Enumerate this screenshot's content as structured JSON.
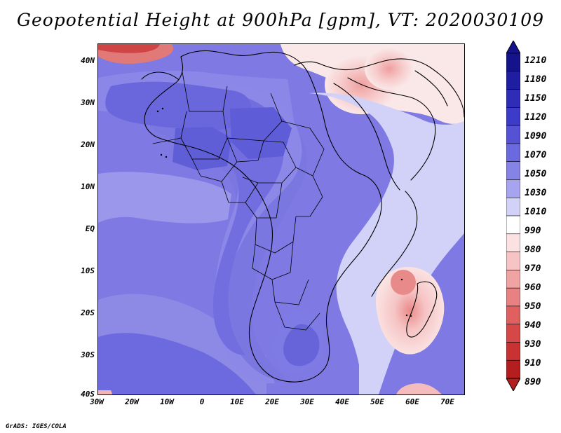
{
  "title": "Geopotential Height at 900hPa [gpm], VT: 2020030109",
  "axes": {
    "lat_ticks": [
      "40N",
      "30N",
      "20N",
      "10N",
      "EQ",
      "10S",
      "20S",
      "30S",
      "40S"
    ],
    "lon_ticks": [
      "30W",
      "20W",
      "10W",
      "0",
      "10E",
      "20E",
      "30E",
      "40E",
      "50E",
      "60E",
      "70E"
    ]
  },
  "colorbar": {
    "labels": [
      "1210",
      "1180",
      "1150",
      "1120",
      "1090",
      "1070",
      "1050",
      "1030",
      "1010",
      "990",
      "980",
      "970",
      "960",
      "950",
      "940",
      "930",
      "910",
      "890"
    ],
    "colors": [
      "#15138c",
      "#1f1ea2",
      "#2f2db8",
      "#3d3bc9",
      "#5552d6",
      "#6b69df",
      "#8683e6",
      "#a6a4ef",
      "#d2d2f8",
      "#ffffff",
      "#fbe2e2",
      "#f6c4c4",
      "#efa3a3",
      "#e88282",
      "#e06060",
      "#d64747",
      "#c93232",
      "#b41e1e"
    ]
  },
  "footer": "GrADS: IGES/COLA"
}
